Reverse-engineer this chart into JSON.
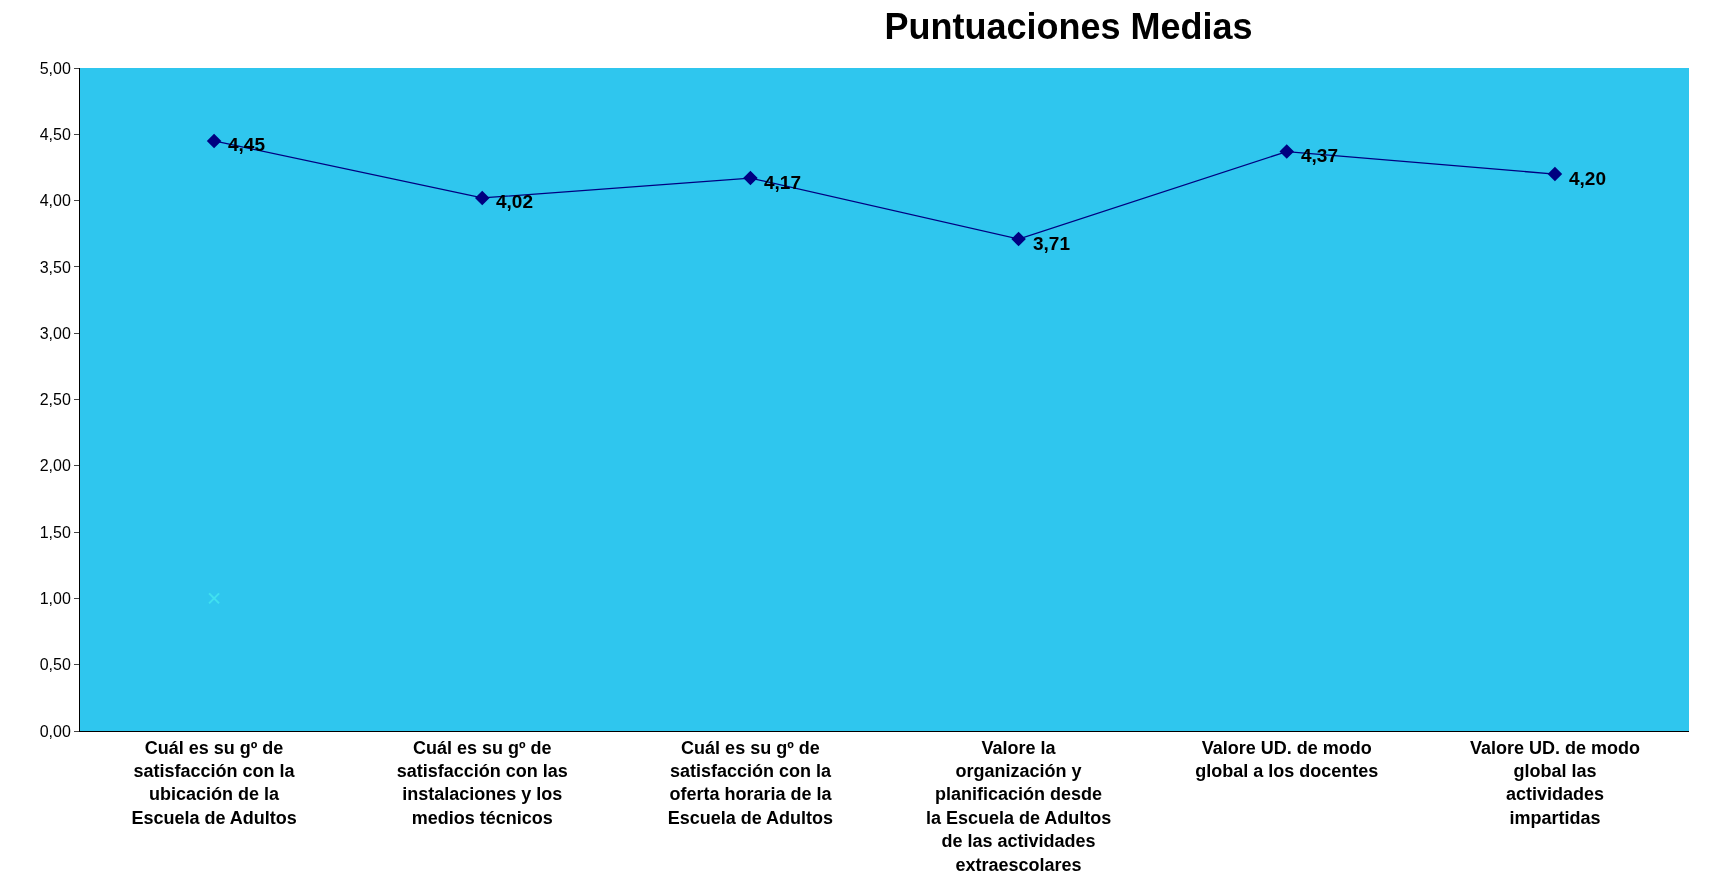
{
  "chart_data": {
    "type": "line",
    "title": "Puntuaciones Medias",
    "categories": [
      "Cuál es su gº de satisfacción con la ubicación de la Escuela de Adultos",
      "Cuál es su gº de satisfacción con las instalaciones y los medios técnicos",
      "Cuál es su gº de satisfacción con la oferta horaria de la Escuela de Adultos",
      "Valore la organización y planificación desde la Escuela de Adultos de las actividades extraescolares",
      "Valore UD. de modo global a los docentes",
      "Valore UD. de modo global las actividades impartidas"
    ],
    "series": [
      {
        "color": "#000080",
        "values": [
          4.45,
          4.02,
          4.17,
          3.71,
          4.37,
          4.2
        ],
        "value_labels": [
          "4,45",
          "4,02",
          "4,17",
          "3,71",
          "4,37",
          "4,20"
        ],
        "marker": "diamond"
      },
      {
        "type": "scatter",
        "color": "#40e0f0",
        "values": [
          1.0,
          null,
          null,
          null,
          null,
          null
        ],
        "marker": "cross"
      }
    ],
    "ylim": [
      0,
      5
    ],
    "yticks": [
      {
        "value": 0,
        "label": "0,00"
      },
      {
        "value": 0.5,
        "label": "0,50"
      },
      {
        "value": 1,
        "label": "1,00"
      },
      {
        "value": 1.5,
        "label": "1,50"
      },
      {
        "value": 2,
        "label": "2,00"
      },
      {
        "value": 2.5,
        "label": "2,50"
      },
      {
        "value": 3,
        "label": "3,00"
      },
      {
        "value": 3.5,
        "label": "3,50"
      },
      {
        "value": 4,
        "label": "4,00"
      },
      {
        "value": 4.5,
        "label": "4,50"
      },
      {
        "value": 5,
        "label": "5,00"
      }
    ],
    "grid": false
  }
}
